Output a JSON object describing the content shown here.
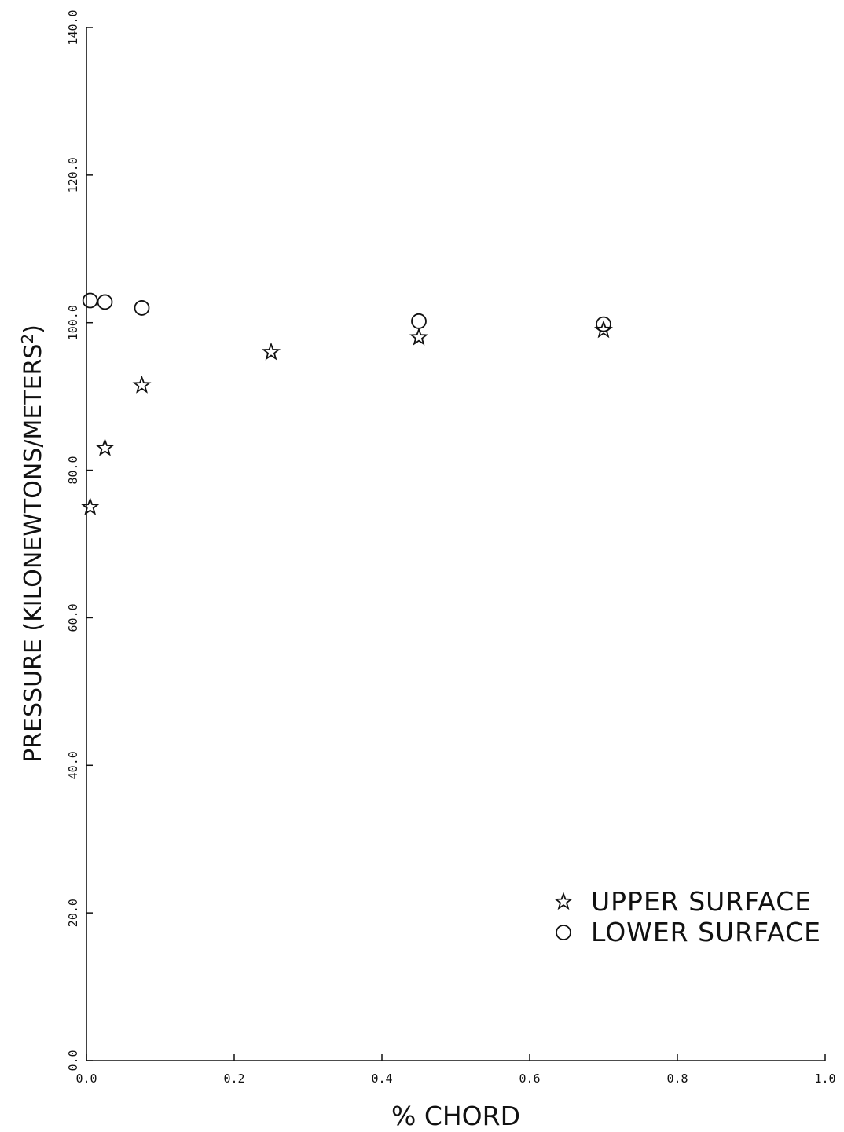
{
  "chart_data": {
    "type": "scatter",
    "xlabel": "% CHORD",
    "ylabel": "PRESSURE (KILONEWTONS/METERS",
    "ylabel_superscript": "2",
    "ylabel_close": ")",
    "xlim": [
      0.0,
      1.0
    ],
    "ylim": [
      0.0,
      140.0
    ],
    "xticks": [
      "0.0",
      "0.2",
      "0.4",
      "0.6",
      "0.8",
      "1.0"
    ],
    "yticks": [
      "0.0",
      "20.0",
      "40.0",
      "60.0",
      "80.0",
      "100.0",
      "120.0",
      "140.0"
    ],
    "grid": false,
    "legend_position": "lower-right",
    "series": [
      {
        "name": "UPPER SURFACE",
        "marker": "star",
        "points": [
          {
            "x": 0.005,
            "y": 75.0
          },
          {
            "x": 0.025,
            "y": 83.0
          },
          {
            "x": 0.075,
            "y": 91.5
          },
          {
            "x": 0.25,
            "y": 96.0
          },
          {
            "x": 0.45,
            "y": 98.0
          },
          {
            "x": 0.7,
            "y": 99.0
          }
        ]
      },
      {
        "name": "LOWER SURFACE",
        "marker": "circle",
        "points": [
          {
            "x": 0.005,
            "y": 103.0
          },
          {
            "x": 0.025,
            "y": 102.8
          },
          {
            "x": 0.075,
            "y": 102.0
          },
          {
            "x": 0.45,
            "y": 100.2
          },
          {
            "x": 0.7,
            "y": 99.8
          }
        ]
      }
    ]
  }
}
